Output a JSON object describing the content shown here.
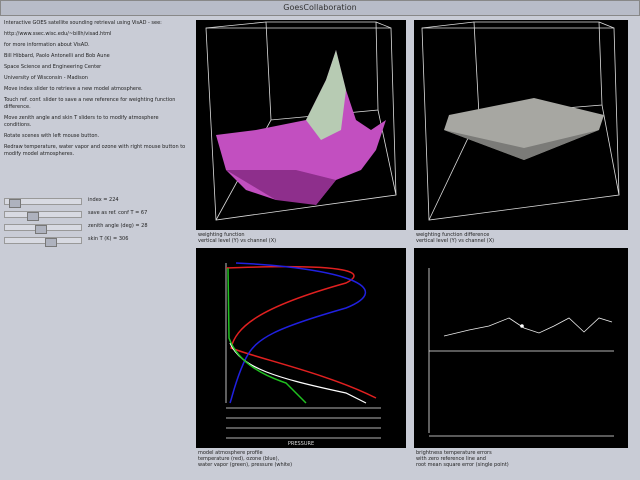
{
  "window": {
    "title": "GoesCollaboration"
  },
  "info": {
    "lines": [
      "Interactive GOES satellite sounding retrieval using VisAD - see:",
      "http://www.ssec.wisc.edu/~billh/visad.html",
      "for more information about VisAD.",
      "Bill Hibbard, Paolo Antonelli and Bob Aune",
      "Space Science and Engineering Center",
      "University of Wisconsin - Madison",
      "Move index slider to retrieve a new model atmosphere.",
      "Touch ref. conf. slider to save a new reference for weighting function difference.",
      "Move zenith angle and skin T sliders to to modify atmosphere conditions.",
      "Rotate scenes with left mouse button.",
      "Redraw temperature, water vapor and ozone with right mouse button to modify model atmospheres."
    ]
  },
  "sliders": [
    "index = 224",
    "save as ref. conf T = 67",
    "zenith angle (deg) = 28",
    "skin T (K) = 306"
  ],
  "panels": [
    {
      "caption": [
        "weighting function",
        "vertical level (Y) vs channel (X)"
      ]
    },
    {
      "caption": [
        "weighting function difference",
        "vertical level (Y) vs channel (X)"
      ]
    },
    {
      "caption": [
        "model atmosphere profile",
        "temperature (red), ozone (blue),",
        "water vapor (green), pressure (white)"
      ],
      "axis_label": "PRESSURE"
    },
    {
      "caption": [
        "brightness temperature errors",
        "with zero reference line and",
        "root mean square error (single point)"
      ]
    }
  ]
}
